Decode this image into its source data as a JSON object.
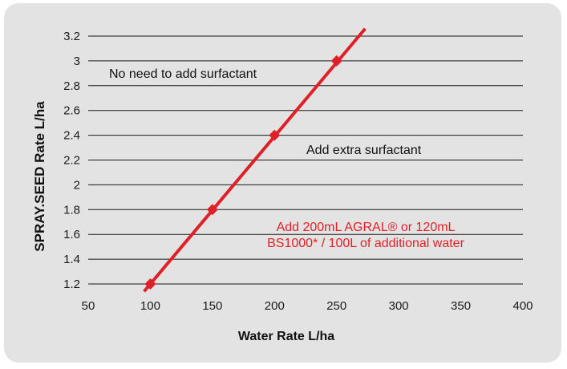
{
  "chart_data": {
    "type": "line",
    "xlabel": "Water Rate L/ha",
    "ylabel": "SPRAY.SEED Rate L/ha",
    "xlim": [
      50,
      400
    ],
    "ylim": [
      1.2,
      3.2
    ],
    "x_ticks": [
      "50",
      "100",
      "150",
      "200",
      "250",
      "300",
      "350",
      "400"
    ],
    "y_ticks": [
      "1.2",
      "1.4",
      "1.6",
      "1.8",
      "2",
      "2.2",
      "2.4",
      "2.6",
      "2.8",
      "3",
      "3.2"
    ],
    "grid": "horizontal",
    "series": [
      {
        "color": "#e02027",
        "points": [
          {
            "x": 100,
            "y": 1.2
          },
          {
            "x": 150,
            "y": 1.8
          },
          {
            "x": 200,
            "y": 2.4
          },
          {
            "x": 250,
            "y": 3.0
          }
        ],
        "line_extent": [
          [
            95,
            1.14
          ],
          [
            273,
            3.26
          ]
        ]
      }
    ],
    "annotations": {
      "above": "No need to add surfactant",
      "right": "Add extra surfactant",
      "red_line1": "Add 200mL AGRAL® or 120mL",
      "red_line2": "BS1000* / 100L of additional water"
    }
  }
}
